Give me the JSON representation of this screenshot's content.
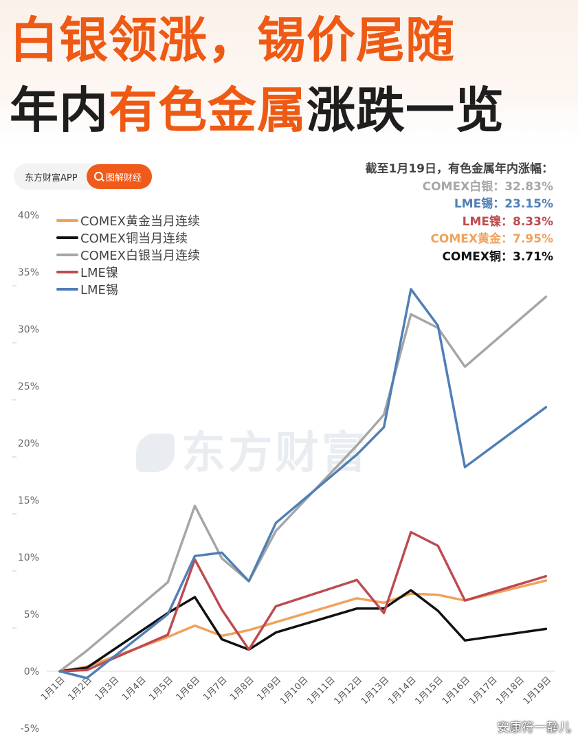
{
  "header": {
    "title_line1": "白银领涨，锡价尾随",
    "title_line2_a": "年内",
    "title_line2_b": "有色金属",
    "title_line2_c": "涨跌一览"
  },
  "brand": {
    "name": "东方财富APP",
    "button": "图解财经",
    "watermark": "东方财富",
    "credit": "安康符一静儿"
  },
  "summary": {
    "heading": "截至1月19日，有色金属年内涨幅：",
    "items": [
      {
        "text": "COMEX白银：32.83%",
        "color": "#a6a6a6"
      },
      {
        "text": "LME锡：23.15%",
        "color": "#4f7fb6"
      },
      {
        "text": "LME镍：8.33%",
        "color": "#bd4b50"
      },
      {
        "text": "COMEX黄金：7.95%",
        "color": "#f0a25a"
      },
      {
        "text": "COMEX铜：3.71%",
        "color": "#111111"
      }
    ]
  },
  "chart_data": {
    "type": "line",
    "title": "",
    "xlabel": "",
    "ylabel": "",
    "ylim": [
      -5,
      40
    ],
    "ytick_values": [
      -5,
      0,
      5,
      10,
      15,
      20,
      25,
      30,
      35,
      40
    ],
    "yticks": [
      "-5%",
      "0%",
      "5%",
      "10%",
      "15%",
      "20%",
      "25%",
      "30%",
      "35%",
      "40%"
    ],
    "categories": [
      "1月1日",
      "1月2日",
      "1月3日",
      "1月4日",
      "1月5日",
      "1月6日",
      "1月7日",
      "1月8日",
      "1月9日",
      "1月10日",
      "1月11日",
      "1月12日",
      "1月13日",
      "1月14日",
      "1月15日",
      "1月16日",
      "1月17日",
      "1月18日",
      "1月19日"
    ],
    "grid": false,
    "legend_position": "top-left",
    "series": [
      {
        "name": "COMEX黄金当月连续",
        "color": "#f0a25a",
        "points": [
          [
            0,
            0
          ],
          [
            1,
            0.4
          ],
          [
            4,
            3
          ],
          [
            5,
            4
          ],
          [
            6,
            3.1
          ],
          [
            7,
            3.6
          ],
          [
            8,
            4.3
          ],
          [
            11,
            6.4
          ],
          [
            12,
            6
          ],
          [
            13,
            6.8
          ],
          [
            14,
            6.7
          ],
          [
            15,
            6.2
          ],
          [
            18,
            7.95
          ]
        ]
      },
      {
        "name": "COMEX铜当月连续",
        "color": "#111111",
        "points": [
          [
            0,
            0
          ],
          [
            1,
            0.3
          ],
          [
            4,
            5.1
          ],
          [
            5,
            6.5
          ],
          [
            6,
            2.8
          ],
          [
            7,
            1.9
          ],
          [
            8,
            3.4
          ],
          [
            11,
            5.5
          ],
          [
            12,
            5.5
          ],
          [
            13,
            7.1
          ],
          [
            14,
            5.3
          ],
          [
            15,
            2.7
          ],
          [
            18,
            3.71
          ]
        ]
      },
      {
        "name": "COMEX白银当月连续",
        "color": "#a6a6a6",
        "points": [
          [
            0,
            0
          ],
          [
            1,
            1.8
          ],
          [
            4,
            7.8
          ],
          [
            5,
            14.5
          ],
          [
            6,
            9.9
          ],
          [
            7,
            7.9
          ],
          [
            8,
            12.3
          ],
          [
            11,
            19.8
          ],
          [
            12,
            22.5
          ],
          [
            13,
            31.3
          ],
          [
            14,
            30.1
          ],
          [
            15,
            26.7
          ],
          [
            18,
            32.83
          ]
        ]
      },
      {
        "name": "LME镍",
        "color": "#bd4b50",
        "points": [
          [
            0,
            0
          ],
          [
            1,
            0.1
          ],
          [
            4,
            3.2
          ],
          [
            5,
            9.8
          ],
          [
            6,
            5.4
          ],
          [
            7,
            1.9
          ],
          [
            8,
            5.7
          ],
          [
            11,
            8
          ],
          [
            12,
            5.1
          ],
          [
            13,
            12.2
          ],
          [
            14,
            11
          ],
          [
            15,
            6.2
          ],
          [
            18,
            8.33
          ]
        ]
      },
      {
        "name": "LME锡",
        "color": "#4f7fb6",
        "points": [
          [
            0,
            0
          ],
          [
            1,
            -0.6
          ],
          [
            4,
            5
          ],
          [
            5,
            10.1
          ],
          [
            6,
            10.4
          ],
          [
            7,
            7.9
          ],
          [
            8,
            13
          ],
          [
            11,
            19
          ],
          [
            12,
            21.4
          ],
          [
            13,
            33.5
          ],
          [
            14,
            30.3
          ],
          [
            15,
            17.9
          ],
          [
            18,
            23.15
          ]
        ]
      }
    ]
  }
}
